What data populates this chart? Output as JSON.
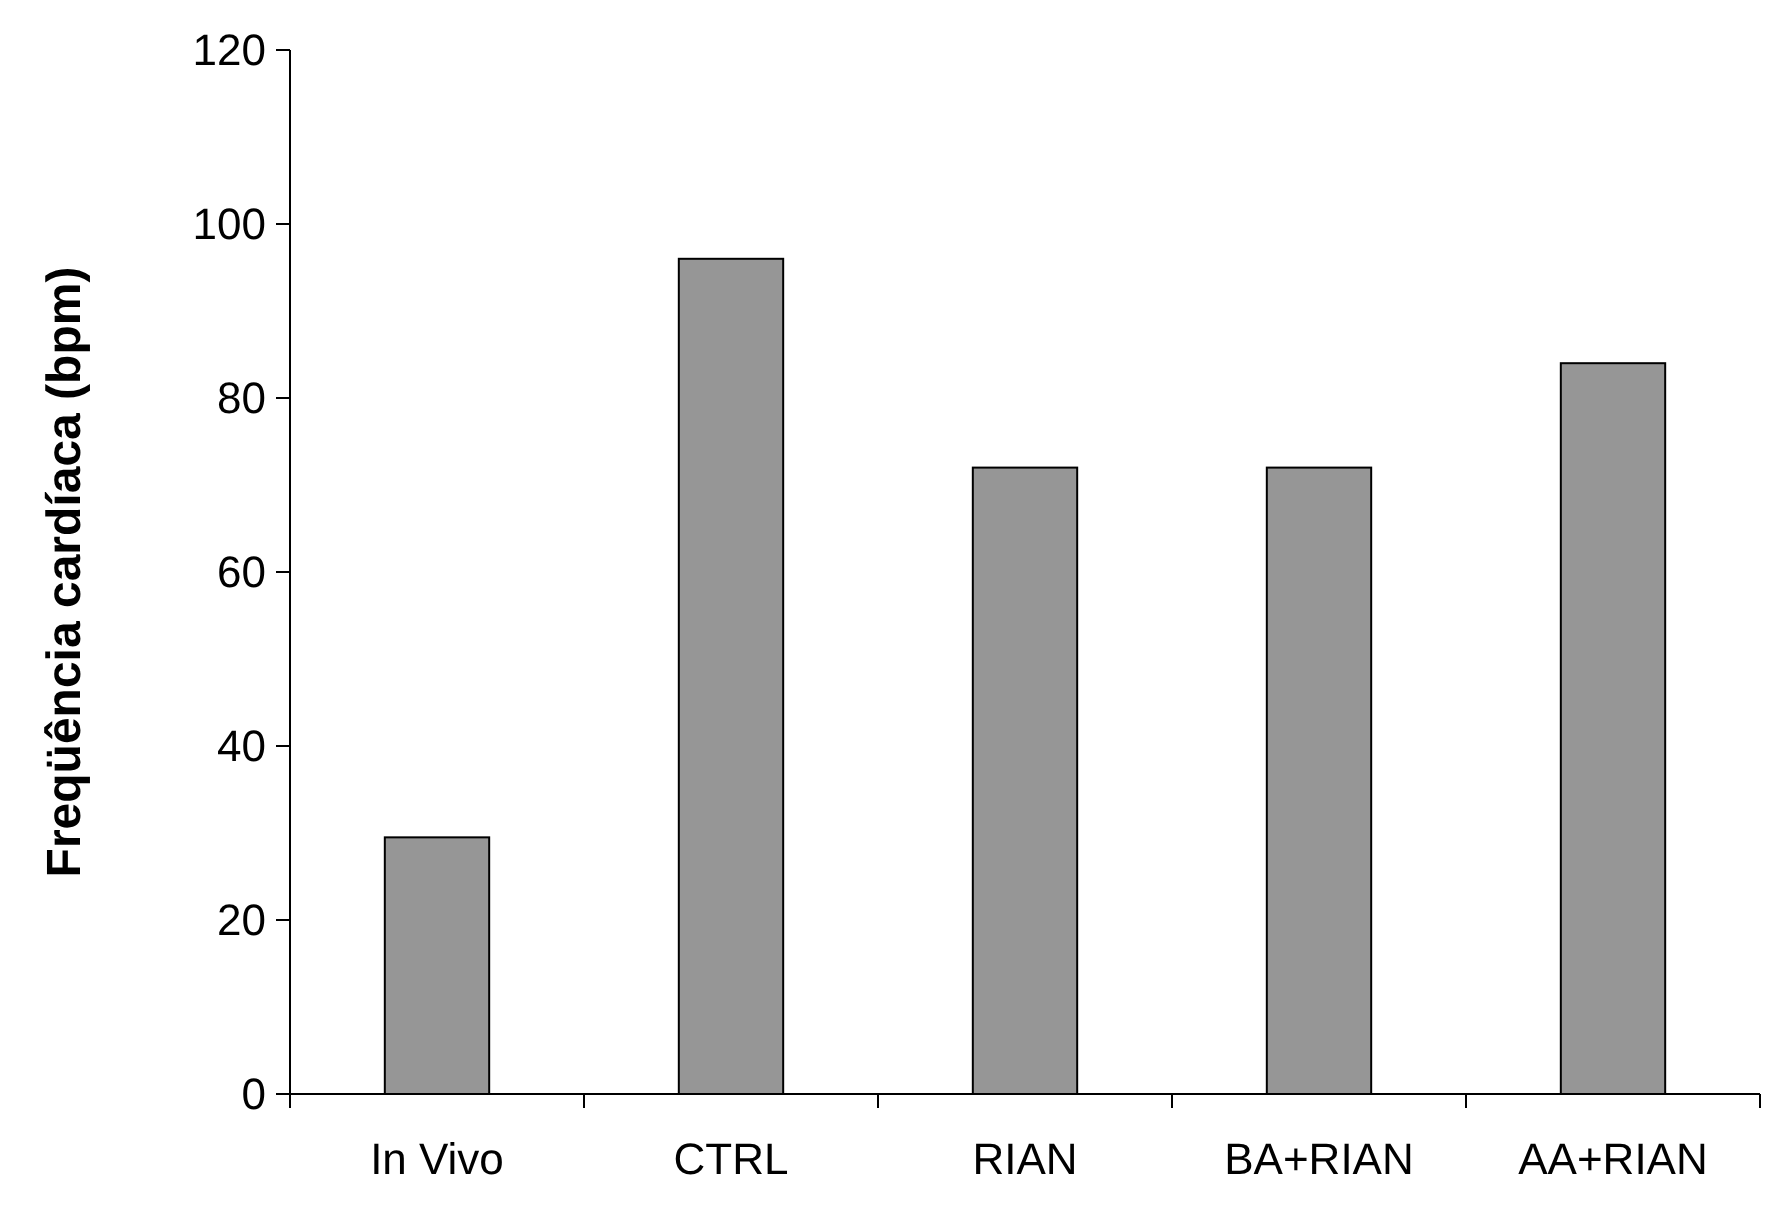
{
  "chart_data": {
    "type": "bar",
    "ylabel": "Freqüência cardíaca (bpm)",
    "categories": [
      "In Vivo",
      "CTRL",
      "RIAN",
      "BA+RIAN",
      "AA+RIAN"
    ],
    "values": [
      29.5,
      96,
      72,
      72,
      84
    ],
    "color": "#969696",
    "ylim": [
      0,
      120
    ],
    "yticks": [
      0,
      20,
      40,
      60,
      80,
      100,
      120
    ],
    "grid": false
  }
}
